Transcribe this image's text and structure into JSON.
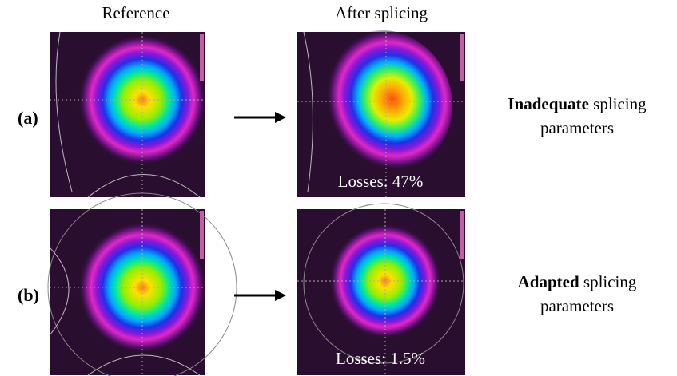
{
  "columns": [
    "Reference",
    "After splicing"
  ],
  "rows": [
    {
      "label": "(a)",
      "losses": "Losses: 47%",
      "description": {
        "emphasis": "Inadequate",
        "text": "splicing parameters"
      }
    },
    {
      "label": "(b)",
      "losses": "Losses: 1.5%",
      "description": {
        "emphasis": "Adapted",
        "text": "splicing parameters"
      }
    }
  ]
}
